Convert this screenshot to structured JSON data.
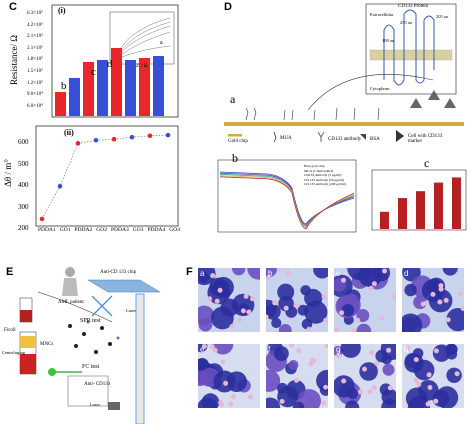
{
  "panels": {
    "C": "C",
    "D": "D",
    "E": "E",
    "F": "F"
  },
  "panelC": {
    "sub_i": "(i)",
    "sub_ii": "(ii)",
    "ylabel_i": "Resistance/ Ω",
    "yticks_i": [
      "6.3×10⁵",
      "4.2×10⁵",
      "2.1×10⁵",
      "2.1×10⁵",
      "1.8×10⁵",
      "1.5×10⁵",
      "1.2×10⁵",
      "9.0×10⁴",
      "6.0×10⁴"
    ],
    "bar_letters": [
      "b",
      "c",
      "d"
    ],
    "inset_xlabel": "Z' / Ω",
    "inset_ylabel": "−Z''/ Ω",
    "inset_curve_label": "a",
    "ylabel_ii": "Δθ / m°",
    "yticks_ii": [
      "600",
      "500",
      "400",
      "300",
      "200"
    ],
    "xticks_ii": [
      "PDDA1",
      "GO1",
      "PDDA2",
      "GO2",
      "PDDA3",
      "GO3",
      "PDDA4",
      "GO4"
    ]
  },
  "chart_data": [
    {
      "type": "bar",
      "title": "",
      "ylabel": "Resistance/ Ω",
      "values_approx": [
        120000.0,
        155000.0,
        195000.0,
        200000.0,
        230000.0,
        200000.0,
        205000.0,
        210000.0
      ],
      "colors": [
        "#e8262b",
        "#3a4fd8",
        "#e8262b",
        "#3a4fd8",
        "#e8262b",
        "#3a4fd8",
        "#e8262b",
        "#3a4fd8"
      ]
    },
    {
      "type": "line",
      "title": "",
      "ylabel": "Δθ / m°",
      "categories": [
        "PDDA1",
        "GO1",
        "PDDA2",
        "GO2",
        "PDDA3",
        "GO3",
        "PDDA4",
        "GO4"
      ],
      "values": [
        205,
        365,
        575,
        590,
        595,
        605,
        612,
        615
      ],
      "ylim": [
        180,
        650
      ]
    },
    {
      "type": "line",
      "title": "",
      "series_names": [
        "Bare gold chip",
        "MUA",
        "CD133 antibody",
        "BSA",
        "Cell"
      ],
      "colors": [
        "#3a4fd8",
        "#6a3d9a",
        "#2a9d8f",
        "#e8b04a",
        "#b02a2a"
      ]
    },
    {
      "type": "bar",
      "title": "",
      "categories": [
        "Bare",
        "MUA",
        "Ab",
        "BSA",
        "Cell"
      ],
      "values_approx": [
        0.5,
        0.9,
        1.1,
        1.35,
        1.5
      ],
      "color": "#b52020"
    }
  ],
  "panelD": {
    "sub_a": "a",
    "sub_b": "b",
    "sub_c": "c",
    "protein_title": "CD133 Protein",
    "extracellular": "Extracellular",
    "cytoplasm": "Cytoplasm",
    "aa_labels": [
      "255 aa",
      "205 aa",
      "108 aa"
    ],
    "legend": [
      {
        "label": "Gold chip"
      },
      {
        "label": "MUA"
      },
      {
        "label": "CD133 antibody"
      },
      {
        "label": "BSA"
      },
      {
        "label": "Cell with CD133 marker"
      }
    ],
    "spr_legend": [
      "Bare gold chip",
      "MUA (1 mmol/dm3)",
      "CD133 antibody (5 μg/ml)",
      "CD 133 antibody (50 μg/ml)",
      "CD 133 antibody (100 μg/ml)"
    ]
  },
  "panelE": {
    "labels": [
      "AML patient",
      "Anti-CD 133 chip",
      "SPR test",
      "Laser",
      "Ficoll",
      "Centrifuging",
      "MNCs",
      "FC test",
      "Anti- CD133",
      "Laser"
    ]
  },
  "panelF": {
    "cell_labels": [
      "a",
      "b",
      "c",
      "d",
      "e",
      "f",
      "g",
      "h"
    ]
  }
}
